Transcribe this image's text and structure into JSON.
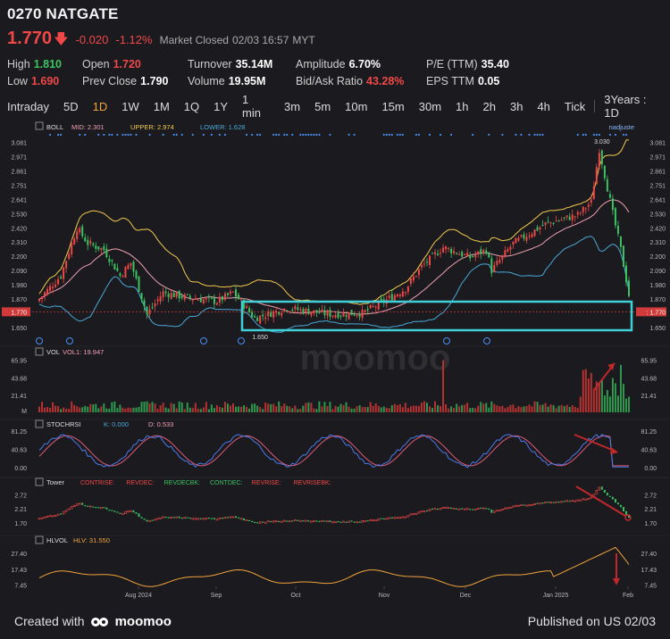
{
  "header": {
    "title": "0270 NATGATE",
    "price": "1.770",
    "change": "-0.020",
    "change_pct": "-1.12%",
    "market_status": "Market Closed",
    "datetime": "02/03 16:57",
    "tz": "MYT"
  },
  "stats": {
    "high_label": "High",
    "high": "1.810",
    "low_label": "Low",
    "low": "1.690",
    "open_label": "Open",
    "open": "1.720",
    "prev_close_label": "Prev Close",
    "prev_close": "1.790",
    "turnover_label": "Turnover",
    "turnover": "35.14M",
    "volume_label": "Volume",
    "volume": "19.95M",
    "amplitude_label": "Amplitude",
    "amplitude": "6.70%",
    "bidask_label": "Bid/Ask Ratio",
    "bidask": "43.28%",
    "pe_label": "P/E (TTM)",
    "pe": "35.40",
    "eps_label": "EPS TTM",
    "eps": "0.05"
  },
  "tabs": [
    "Intraday",
    "5D",
    "1D",
    "1W",
    "1M",
    "1Q",
    "1Y",
    "1 min",
    "3m",
    "5m",
    "10m",
    "15m",
    "30m",
    "1h",
    "2h",
    "3h",
    "4h",
    "Tick",
    "3Years : 1D"
  ],
  "active_tab": "1D",
  "footer": {
    "created_with": "Created with",
    "brand": "moomoo",
    "published": "Published on US 02/03"
  },
  "watermark": "moomoo",
  "colors": {
    "up": "#f04848",
    "down": "#3cc463",
    "mid": "#f0a0b0",
    "upper": "#f2c94c",
    "lower": "#4aa8d8",
    "highlight": "#3fd0d8",
    "annotation": "#c0282b"
  },
  "chart_data": [
    {
      "type": "candlestick",
      "name": "BOLL",
      "legend": {
        "label": "BOLL",
        "mid": "MID: 2.301",
        "upper": "UPPER: 2.974",
        "lower": "LOWER: 1.628"
      },
      "author": "nadjuste",
      "yticks": [
        "3.081",
        "2.971",
        "2.861",
        "2.751",
        "2.641",
        "2.530",
        "2.420",
        "2.310",
        "2.200",
        "2.090",
        "1.980",
        "1.870",
        "1.770",
        "1.650"
      ],
      "ylim": [
        1.6,
        3.12
      ],
      "price_line": "1.770",
      "annotations": [
        "3.030",
        "1.650"
      ],
      "x_labels": [
        "Aug 2024",
        "Sep",
        "Oct",
        "Nov",
        "Dec",
        "Jan 2025",
        "Feb"
      ]
    },
    {
      "type": "bar",
      "name": "VOL",
      "legend": {
        "label": "VOL",
        "vol1": "VOL1: 19.947"
      },
      "yticks": [
        "65.95",
        "43.68",
        "21.41",
        "M"
      ]
    },
    {
      "type": "line",
      "name": "STOCHRSI",
      "legend": {
        "label": "STOCHRSI",
        "k": "K: 0.000",
        "d": "D: 0.533"
      },
      "yticks": [
        "81.25",
        "40.63",
        "0.00"
      ]
    },
    {
      "type": "bar",
      "name": "Tower",
      "legend": {
        "label": "Tower",
        "items": [
          "CONTRISE:",
          "REVDEC:",
          "REVDECBK:",
          "CONTDEC:",
          "REVRISE:",
          "REVRISEBK:"
        ]
      },
      "yticks": [
        "2.72",
        "2.21",
        "1.70"
      ]
    },
    {
      "type": "line",
      "name": "HLVOL",
      "legend": {
        "label": "HLVOL",
        "hlv": "HLV: 31.550"
      },
      "yticks": [
        "27.40",
        "17.43",
        "7.45"
      ]
    }
  ]
}
